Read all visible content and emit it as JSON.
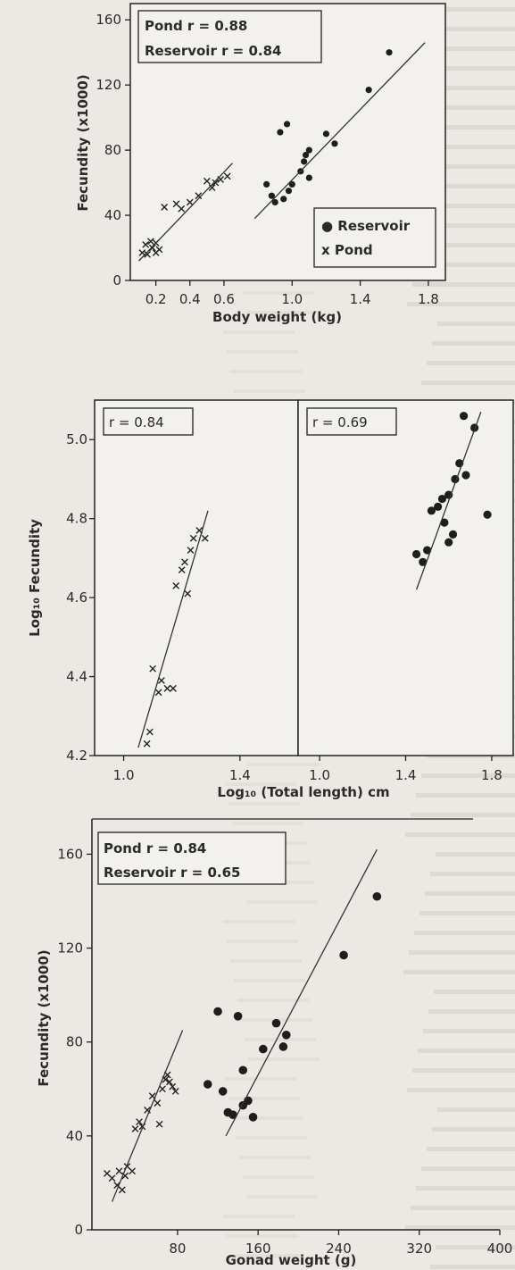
{
  "chart_data": [
    {
      "type": "scatter",
      "xlabel": "Body weight (kg)",
      "ylabel": "Fecundity (x1000)",
      "xlim": [
        0.05,
        1.9
      ],
      "ylim": [
        0,
        170
      ],
      "xticks": [
        "0.2",
        "0.4",
        "0.6",
        "1.0",
        "1.4",
        "1.8"
      ],
      "yticks": [
        "0",
        "40",
        "80",
        "120",
        "160"
      ],
      "annotation": [
        "Pond r = 0.88",
        "Reservoir r = 0.84"
      ],
      "legend": [
        "● Reservoir",
        "x Pond"
      ],
      "legend_position": "bottom-right",
      "series": [
        {
          "name": "Pond",
          "marker": "x",
          "points": [
            [
              0.12,
              17
            ],
            [
              0.14,
              22
            ],
            [
              0.15,
              16
            ],
            [
              0.17,
              24
            ],
            [
              0.18,
              20
            ],
            [
              0.2,
              23
            ],
            [
              0.2,
              17
            ],
            [
              0.22,
              19
            ],
            [
              0.25,
              45
            ],
            [
              0.32,
              47
            ],
            [
              0.35,
              44
            ],
            [
              0.4,
              48
            ],
            [
              0.45,
              52
            ],
            [
              0.5,
              61
            ],
            [
              0.53,
              57
            ],
            [
              0.55,
              60
            ],
            [
              0.58,
              62
            ],
            [
              0.62,
              64
            ]
          ],
          "fit": [
            [
              0.1,
              12
            ],
            [
              0.65,
              72
            ]
          ]
        },
        {
          "name": "Reservoir",
          "marker": "dot",
          "points": [
            [
              0.85,
              59
            ],
            [
              0.88,
              52
            ],
            [
              0.9,
              48
            ],
            [
              0.93,
              91
            ],
            [
              0.95,
              50
            ],
            [
              0.97,
              96
            ],
            [
              0.98,
              55
            ],
            [
              1.0,
              59
            ],
            [
              1.05,
              67
            ],
            [
              1.07,
              73
            ],
            [
              1.08,
              77
            ],
            [
              1.1,
              80
            ],
            [
              1.1,
              63
            ],
            [
              1.2,
              90
            ],
            [
              1.25,
              84
            ],
            [
              1.45,
              117
            ],
            [
              1.57,
              140
            ]
          ],
          "fit": [
            [
              0.78,
              38
            ],
            [
              1.78,
              146
            ]
          ]
        }
      ]
    },
    {
      "type": "scatter",
      "xlabel": "Log₁₀ (Total length) cm",
      "ylabel": "Log₁₀ Fecundity",
      "ylim": [
        4.2,
        5.1
      ],
      "yticks": [
        "4.2",
        "4.4",
        "4.6",
        "4.8",
        "5.0"
      ],
      "panels": [
        {
          "annotation": "r = 0.84",
          "marker": "x",
          "xlim": [
            0.9,
            1.6
          ],
          "xticks": [
            "1.0",
            "1.4"
          ],
          "points": [
            [
              1.08,
              4.23
            ],
            [
              1.09,
              4.26
            ],
            [
              1.1,
              4.42
            ],
            [
              1.12,
              4.36
            ],
            [
              1.13,
              4.39
            ],
            [
              1.15,
              4.37
            ],
            [
              1.17,
              4.37
            ],
            [
              1.18,
              4.63
            ],
            [
              1.2,
              4.67
            ],
            [
              1.21,
              4.69
            ],
            [
              1.22,
              4.61
            ],
            [
              1.23,
              4.72
            ],
            [
              1.24,
              4.75
            ],
            [
              1.26,
              4.77
            ],
            [
              1.28,
              4.75
            ]
          ],
          "fit": [
            [
              1.05,
              4.22
            ],
            [
              1.29,
              4.82
            ]
          ]
        },
        {
          "annotation": "r = 0.69",
          "marker": "dot",
          "xlim": [
            0.9,
            1.9
          ],
          "xticks": [
            "1.0",
            "1.4",
            "1.8"
          ],
          "points": [
            [
              1.45,
              4.71
            ],
            [
              1.48,
              4.69
            ],
            [
              1.5,
              4.72
            ],
            [
              1.52,
              4.82
            ],
            [
              1.55,
              4.83
            ],
            [
              1.57,
              4.85
            ],
            [
              1.58,
              4.79
            ],
            [
              1.6,
              4.74
            ],
            [
              1.6,
              4.86
            ],
            [
              1.62,
              4.76
            ],
            [
              1.63,
              4.9
            ],
            [
              1.65,
              4.94
            ],
            [
              1.67,
              5.06
            ],
            [
              1.68,
              4.91
            ],
            [
              1.72,
              5.03
            ],
            [
              1.78,
              4.81
            ]
          ],
          "fit": [
            [
              1.45,
              4.62
            ],
            [
              1.75,
              5.07
            ]
          ]
        }
      ]
    },
    {
      "type": "scatter",
      "xlabel": "Gonad weight (g)",
      "ylabel": "Fecundity (x1000)",
      "xlim": [
        -5,
        400
      ],
      "ylim": [
        0,
        175
      ],
      "xticks": [
        "80",
        "160",
        "240",
        "320",
        "400"
      ],
      "yticks": [
        "0",
        "40",
        "80",
        "120",
        "160"
      ],
      "annotation": [
        "Pond r = 0.84",
        "Reservoir r = 0.65"
      ],
      "series": [
        {
          "name": "Pond",
          "marker": "x",
          "points": [
            [
              10,
              24
            ],
            [
              15,
              22
            ],
            [
              20,
              19
            ],
            [
              22,
              25
            ],
            [
              25,
              17
            ],
            [
              28,
              23
            ],
            [
              30,
              27
            ],
            [
              35,
              25
            ],
            [
              38,
              43
            ],
            [
              42,
              46
            ],
            [
              45,
              44
            ],
            [
              50,
              51
            ],
            [
              55,
              57
            ],
            [
              60,
              54
            ],
            [
              62,
              45
            ],
            [
              65,
              60
            ],
            [
              68,
              64
            ],
            [
              70,
              66
            ],
            [
              72,
              63
            ],
            [
              75,
              61
            ],
            [
              78,
              59
            ]
          ],
          "fit": [
            [
              15,
              12
            ],
            [
              85,
              85
            ]
          ]
        },
        {
          "name": "Reservoir",
          "marker": "dot",
          "points": [
            [
              110,
              62
            ],
            [
              120,
              93
            ],
            [
              125,
              59
            ],
            [
              130,
              50
            ],
            [
              135,
              49
            ],
            [
              140,
              91
            ],
            [
              145,
              68
            ],
            [
              145,
              53
            ],
            [
              150,
              55
            ],
            [
              155,
              48
            ],
            [
              165,
              77
            ],
            [
              178,
              88
            ],
            [
              185,
              78
            ],
            [
              188,
              83
            ],
            [
              245,
              117
            ],
            [
              278,
              142
            ]
          ],
          "fit": [
            [
              128,
              40
            ],
            [
              278,
              162
            ]
          ]
        }
      ]
    }
  ]
}
